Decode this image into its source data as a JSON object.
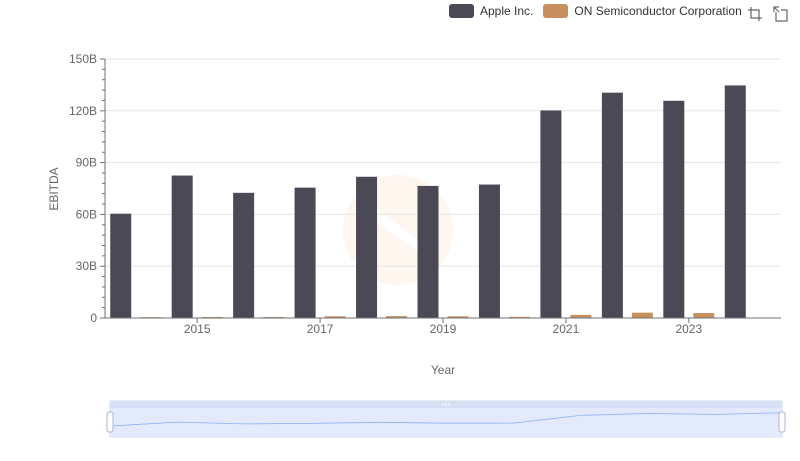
{
  "legend": {
    "items": [
      {
        "name": "Apple Inc.",
        "color": "#4a4955"
      },
      {
        "name": "ON Semiconductor Corporation",
        "color": "#c8905e"
      }
    ]
  },
  "toolbox": {
    "icons": [
      "zoom-select-icon",
      "zoom-reset-icon"
    ]
  },
  "chart_data": {
    "type": "bar",
    "categories": [
      "2014",
      "2015",
      "2016",
      "2017",
      "2018",
      "2019",
      "2020",
      "2021",
      "2022",
      "2023",
      "2024"
    ],
    "x_tick_labels": [
      "2015",
      "2017",
      "2019",
      "2021",
      "2023"
    ],
    "xlabel": "Year",
    "ylabel": "EBITDA",
    "ylim": [
      0,
      150
    ],
    "y_ticks": [
      "0",
      "30B",
      "60B",
      "90B",
      "120B",
      "150B"
    ],
    "series": [
      {
        "name": "Apple Inc.",
        "color": "#4a4955",
        "values": [
          60.4,
          82.5,
          72.5,
          75.5,
          81.8,
          76.5,
          77.3,
          120.2,
          130.5,
          125.8,
          134.7
        ]
      },
      {
        "name": "ON Semiconductor Corporation",
        "color": "#c8905e",
        "values": [
          0.5,
          0.6,
          0.6,
          1.0,
          1.1,
          1.0,
          0.7,
          1.8,
          3.1,
          2.9,
          0
        ]
      }
    ],
    "grid": true,
    "legend_position": "top-right",
    "watermark": "logo",
    "datazoom_slider": true
  }
}
